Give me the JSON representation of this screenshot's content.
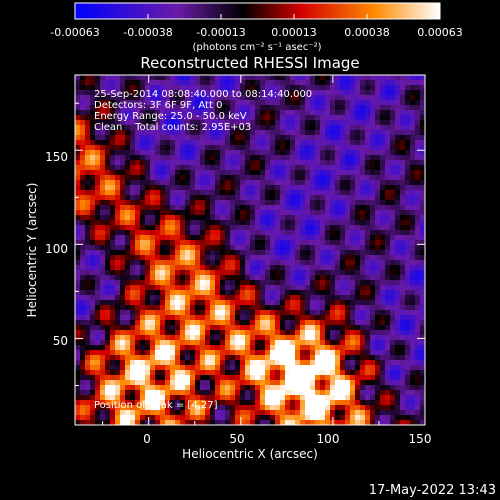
{
  "chart_data": {
    "type": "heatmap",
    "title": "Reconstructed RHESSI Image",
    "xlabel": "Heliocentric X (arcsec)",
    "ylabel": "Heliocentric Y (arcsec)",
    "xlim": [
      -40,
      150
    ],
    "ylim": [
      4,
      190
    ],
    "xticks": [
      "0",
      "50",
      "100",
      "150"
    ],
    "yticks": [
      "50",
      "100",
      "150"
    ],
    "colorbar": {
      "range": [
        -0.00063,
        0.00063
      ],
      "tick_labels": [
        "-0.00063",
        "-0.00038",
        "-0.00013",
        "0.00013",
        "0.00038",
        "0.00063"
      ],
      "unit_label": "(photons cm⁻² s⁻¹ asec⁻²)",
      "colormap": [
        "#0000ff",
        "#6a1aa8",
        "#000000",
        "#d40000",
        "#ff8a00",
        "#ffffff"
      ]
    },
    "annotations": [
      "25-Sep-2014 08:08:40.000 to 08:14:40.000",
      "Detectors: 3F 6F 9F, Att 0",
      "Energy Range: 25.0 - 50.0 keV",
      "Clean    Total counts: 2.95E+03"
    ],
    "peak_label": "Position of Peak = [4,27]",
    "peak_position": [
      4,
      27
    ],
    "grid": false
  },
  "footer_date": "17-May-2022 13:43"
}
